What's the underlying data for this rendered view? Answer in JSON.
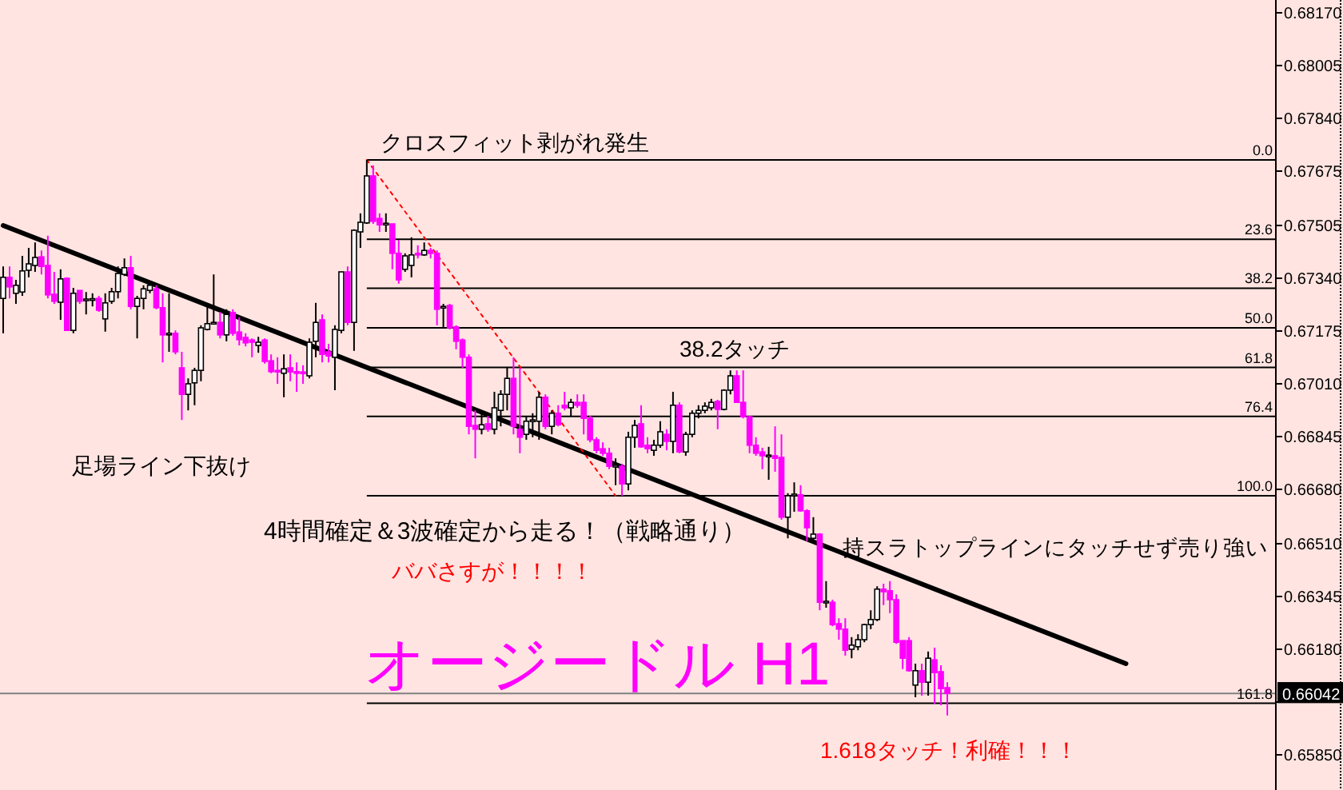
{
  "chart_data": {
    "type": "candlestick",
    "title": "オージードル H1",
    "annotations": [
      "クロスフィット剥がれ発生",
      "38.2タッチ",
      "足場ライン下抜け",
      "4時間確定＆3波確定から走る！（戦略通り）",
      "ババさすが！！！！",
      "持スラトップラインにタッチせず売り強い",
      "1.618タッチ！利確！！！",
      {
        "text": "0.0",
        "y": 0.6771
      },
      {
        "text": "23.6",
        "y": 0.67462
      },
      {
        "text": "38.2",
        "y": 0.67309
      },
      {
        "text": "50.0",
        "y": 0.67185
      },
      {
        "text": "61.8",
        "y": 0.67061
      },
      {
        "text": "76.4",
        "y": 0.66908
      },
      {
        "text": "100.0",
        "y": 0.6666
      },
      {
        "text": "161.8",
        "y": 0.66011
      }
    ],
    "colors": [
      "#ffffff",
      "#ff00ff",
      "#ffffff",
      "#ffffff",
      "#ffffff",
      "#ffffff",
      "#ff00ff",
      "#ff00ff",
      "#ff00ff",
      "#ffffff",
      "#ff00ff",
      "#ffffff",
      "#ff00ff",
      "#ffffff",
      "#ffffff",
      "#ff00ff",
      "#ffffff",
      "#ffffff",
      "#ffffff",
      "#ffffff",
      "#ff00ff",
      "#ffffff",
      "#ffffff",
      "#ffffff",
      "#ff00ff",
      "#ff00ff",
      "#ffffff",
      "#ff00ff",
      "#ff00ff",
      "#ffffff",
      "#ffffff",
      "#ffffff",
      "#ffffff",
      "#ffffff",
      "#ff00ff",
      "#ffffff",
      "#ff00ff",
      "#ff00ff",
      "#ff00ff",
      "#ff00ff",
      "#ffffff",
      "#ff00ff",
      "#ff00ff",
      "#ff00ff",
      "#ffffff",
      "#ff00ff",
      "#ff00ff",
      "#ff00ff",
      "#ffffff",
      "#ffffff",
      "#ff00ff",
      "#ff00ff",
      "#ffffff",
      "#ffffff",
      "#ff00ff",
      "#ffffff",
      "#ffffff",
      "#ffffff",
      "#ff00ff",
      "#ff00ff",
      "#ffffff",
      "#ff00ff",
      "#ff00ff",
      "#ffffff",
      "#ffffff",
      "#ff00ff",
      "#ffffff",
      "#ff00ff",
      "#ff00ff",
      "#ffffff",
      "#ff00ff",
      "#ff00ff",
      "#ff00ff",
      "#ff00ff",
      "#ff00ff",
      "#ffffff",
      "#ff00ff",
      "#ffffff",
      "#ffffff",
      "#ffffff",
      "#ff00ff",
      "#ff00ff",
      "#ffffff",
      "#ffffff",
      "#ffffff",
      "#ff00ff",
      "#ffffff",
      "#ff00ff",
      "#ff00ff",
      "#ffffff",
      "#ff00ff",
      "#ff00ff",
      "#ff00ff",
      "#ff00ff",
      "#ff00ff",
      "#ff00ff",
      "#ffffff",
      "#ff00ff",
      "#ffffff",
      "#ffffff",
      "#ff00ff",
      "#ff00ff",
      "#ffffff",
      "#ffffff",
      "#ff00ff",
      "#ffffff",
      "#ff00ff",
      "#ffffff",
      "#ffffff",
      "#ffffff",
      "#ffffff",
      "#ffffff",
      "#ff00ff",
      "#ffffff",
      "#ffffff",
      "#ff00ff",
      "#ff00ff",
      "#ff00ff",
      "#ff00ff",
      "#ff00ff",
      "#ffffff",
      "#ff00ff",
      "#ff00ff",
      "#ffffff",
      "#ffffff",
      "#ff00ff",
      "#ff00ff",
      "#ffffff",
      "#ff00ff",
      "#ffffff",
      "#ff00ff",
      "#ff00ff",
      "#ff00ff",
      "#ffffff",
      "#ffffff",
      "#ffffff",
      "#ffffff",
      "#ffffff",
      "#ff00ff",
      "#ff00ff",
      "#ff00ff",
      "#ff00ff",
      "#ff00ff",
      "#ffffff",
      "#ff00ff",
      "#ffffff",
      "#ff00ff",
      "#ff00ff",
      "#ff00ff",
      null,
      null,
      null,
      null,
      null,
      null,
      null,
      null,
      null,
      null,
      null,
      null,
      null,
      null,
      null,
      null,
      null,
      null,
      null,
      null,
      null,
      null,
      null,
      null,
      null,
      null,
      null,
      null,
      null,
      null,
      null,
      null,
      null,
      null,
      null,
      null,
      null,
      null,
      null,
      null,
      null,
      null,
      null,
      null,
      null,
      null,
      null,
      null,
      null,
      null,
      null
    ],
    "categories": [
      null,
      null,
      null,
      null,
      null,
      null,
      null,
      null,
      null,
      null,
      null,
      null,
      null,
      null,
      null,
      null,
      null,
      null,
      null,
      null,
      null,
      null,
      null,
      null,
      null,
      null,
      null,
      null,
      null,
      null,
      null,
      null,
      null,
      null,
      null,
      null,
      null,
      null,
      null,
      null,
      null,
      null,
      null,
      null,
      null,
      null,
      null,
      null,
      null,
      null,
      null,
      null,
      null,
      null,
      null,
      null,
      null,
      null,
      null,
      null,
      null,
      null,
      null,
      null,
      null,
      null,
      null,
      null,
      null,
      null,
      null,
      null,
      null,
      null,
      null,
      null,
      null,
      null,
      null,
      null,
      null,
      null,
      null,
      null,
      null,
      null,
      null,
      null,
      null,
      null,
      null,
      null,
      null,
      null,
      null,
      null,
      null,
      null,
      null,
      null,
      null,
      null,
      null,
      null,
      null,
      null,
      null,
      null,
      null,
      null,
      null,
      null,
      null,
      null,
      null,
      null,
      null,
      null,
      null,
      null,
      null,
      null,
      null,
      null,
      null,
      null,
      null,
      null,
      null,
      null,
      null,
      null,
      null,
      null,
      null,
      null,
      null,
      null,
      null,
      null,
      null,
      null,
      null,
      null,
      null,
      null,
      null,
      null,
      null,
      null,
      null,
      null,
      null,
      null,
      null,
      null,
      null,
      null,
      null,
      null,
      null,
      null,
      null,
      null,
      null,
      null,
      null,
      null,
      null,
      null,
      null,
      null,
      null,
      null,
      null,
      null,
      null,
      null,
      null,
      null,
      null,
      null,
      null,
      null,
      null,
      null,
      null,
      null,
      null,
      null,
      null,
      null,
      null,
      null,
      null,
      null,
      null,
      null,
      null,
      null
    ],
    "ohlc": [
      [
        0.67277,
        0.67377,
        0.67168,
        0.67343
      ],
      [
        0.67343,
        0.67377,
        0.67277,
        0.67313
      ],
      [
        0.67293,
        0.67335,
        0.6726,
        0.67318
      ],
      [
        0.67297,
        0.6741,
        0.67285,
        0.67363
      ],
      [
        0.67365,
        0.67435,
        0.67343,
        0.67385
      ],
      [
        0.6738,
        0.67452,
        0.6736,
        0.67405
      ],
      [
        0.67407,
        0.67427,
        0.67352,
        0.67377
      ],
      [
        0.6738,
        0.67473,
        0.67277,
        0.67288
      ],
      [
        0.6729,
        0.6736,
        0.6726,
        0.67268
      ],
      [
        0.67265,
        0.67368,
        0.6721,
        0.67338
      ],
      [
        0.6734,
        0.67343,
        0.67177,
        0.67177
      ],
      [
        0.67177,
        0.6731,
        0.67168,
        0.67293
      ],
      [
        0.67302,
        0.67302,
        0.6726,
        0.67268
      ],
      [
        0.67272,
        0.67297,
        0.67227,
        0.67275
      ],
      [
        0.67273,
        0.67293,
        0.67252,
        0.67276
      ],
      [
        0.67277,
        0.67285,
        0.67235,
        0.6724
      ],
      [
        0.67213,
        0.67293,
        0.67173,
        0.67263
      ],
      [
        0.67268,
        0.6731,
        0.6726,
        0.67298
      ],
      [
        0.67298,
        0.67377,
        0.67277,
        0.67355
      ],
      [
        0.67352,
        0.67402,
        0.67347,
        0.67373
      ],
      [
        0.67373,
        0.6741,
        0.67243,
        0.67252
      ],
      [
        0.67252,
        0.67285,
        0.67152,
        0.67277
      ],
      [
        0.67277,
        0.67318,
        0.67243,
        0.67307
      ],
      [
        0.67302,
        0.6733,
        0.67293,
        0.67318
      ],
      [
        0.67307,
        0.67318,
        0.67243,
        0.67248
      ],
      [
        0.67248,
        0.67293,
        0.67077,
        0.67163
      ],
      [
        0.67165,
        0.67293,
        0.6711,
        0.67168
      ],
      [
        0.67168,
        0.67177,
        0.67102,
        0.6711
      ],
      [
        0.6706,
        0.6711,
        0.66897,
        0.66977
      ],
      [
        0.66977,
        0.67027,
        0.66927,
        0.6701
      ],
      [
        0.67013,
        0.6706,
        0.66943,
        0.67052
      ],
      [
        0.67052,
        0.67193,
        0.67018,
        0.67185
      ],
      [
        0.6718,
        0.6726,
        0.67177,
        0.67198
      ],
      [
        0.67198,
        0.67352,
        0.67195,
        0.67202
      ],
      [
        0.67202,
        0.67235,
        0.67152,
        0.67163
      ],
      [
        0.67163,
        0.67243,
        0.67143,
        0.67227
      ],
      [
        0.67233,
        0.67243,
        0.6716,
        0.67168
      ],
      [
        0.67172,
        0.67218,
        0.6713,
        0.67148
      ],
      [
        0.67155,
        0.67168,
        0.67127,
        0.67138
      ],
      [
        0.67147,
        0.67152,
        0.67093,
        0.6714
      ],
      [
        0.6713,
        0.67157,
        0.67107,
        0.6714
      ],
      [
        0.67147,
        0.67152,
        0.67073,
        0.6708
      ],
      [
        0.67082,
        0.67102,
        0.67043,
        0.67048
      ],
      [
        0.67052,
        0.67093,
        0.6701,
        0.67047
      ],
      [
        0.67043,
        0.67102,
        0.66968,
        0.67057
      ],
      [
        0.6706,
        0.67102,
        0.67018,
        0.67047
      ],
      [
        0.67048,
        0.67077,
        0.66985,
        0.67043
      ],
      [
        0.67047,
        0.67068,
        0.6701,
        0.67043
      ],
      [
        0.67035,
        0.67152,
        0.67027,
        0.6714
      ],
      [
        0.67143,
        0.67263,
        0.67093,
        0.67202
      ],
      [
        0.6721,
        0.67227,
        0.67077,
        0.67102
      ],
      [
        0.6711,
        0.67135,
        0.67077,
        0.67097
      ],
      [
        0.67093,
        0.67193,
        0.6699,
        0.6718
      ],
      [
        0.67177,
        0.6736,
        0.67168,
        0.6736
      ],
      [
        0.6736,
        0.67377,
        0.67193,
        0.67202
      ],
      [
        0.67202,
        0.67493,
        0.67113,
        0.6749
      ],
      [
        0.67485,
        0.67543,
        0.67435,
        0.67515
      ],
      [
        0.67513,
        0.6771,
        0.6751,
        0.6766
      ],
      [
        0.6766,
        0.67693,
        0.6751,
        0.67518
      ],
      [
        0.67527,
        0.67543,
        0.67485,
        0.67507
      ],
      [
        0.67508,
        0.67543,
        0.67485,
        0.67512
      ],
      [
        0.6751,
        0.6751,
        0.67368,
        0.67418
      ],
      [
        0.67418,
        0.6746,
        0.67323,
        0.67335
      ],
      [
        0.67368,
        0.67418,
        0.6736,
        0.6741
      ],
      [
        0.6738,
        0.67468,
        0.67343,
        0.67413
      ],
      [
        0.67418,
        0.67443,
        0.67402,
        0.67415
      ],
      [
        0.67413,
        0.67452,
        0.6741,
        0.67427
      ],
      [
        0.67427,
        0.67435,
        0.67402,
        0.67418
      ],
      [
        0.67418,
        0.67427,
        0.67193,
        0.67243
      ],
      [
        0.67248,
        0.6726,
        0.67185,
        0.67252
      ],
      [
        0.67255,
        0.6726,
        0.6718,
        0.67185
      ],
      [
        0.67188,
        0.67193,
        0.67118,
        0.67143
      ],
      [
        0.67147,
        0.67152,
        0.6706,
        0.67093
      ],
      [
        0.67093,
        0.67102,
        0.66852,
        0.66877
      ],
      [
        0.6688,
        0.66927,
        0.66777,
        0.66868
      ],
      [
        0.66868,
        0.66927,
        0.66852,
        0.66882
      ],
      [
        0.66885,
        0.6691,
        0.6686,
        0.66868
      ],
      [
        0.66868,
        0.66985,
        0.66852,
        0.66935
      ],
      [
        0.66927,
        0.6699,
        0.66877,
        0.66977
      ],
      [
        0.66977,
        0.6706,
        0.66927,
        0.67027
      ],
      [
        0.67027,
        0.67093,
        0.66852,
        0.66877
      ],
      [
        0.66868,
        0.6706,
        0.66793,
        0.66843
      ],
      [
        0.66852,
        0.6691,
        0.66835,
        0.66893
      ],
      [
        0.66893,
        0.66918,
        0.66843,
        0.66897
      ],
      [
        0.66893,
        0.66985,
        0.66835,
        0.66968
      ],
      [
        0.66968,
        0.66977,
        0.66868,
        0.66877
      ],
      [
        0.66877,
        0.66927,
        0.66852,
        0.66918
      ],
      [
        0.66918,
        0.66943,
        0.66877,
        0.66882
      ],
      [
        0.66943,
        0.66985,
        0.66927,
        0.66935
      ],
      [
        0.66935,
        0.66963,
        0.6691,
        0.66952
      ],
      [
        0.66952,
        0.66977,
        0.66935,
        0.66943
      ],
      [
        0.66952,
        0.66977,
        0.66852,
        0.66902
      ],
      [
        0.66902,
        0.6691,
        0.66827,
        0.66835
      ],
      [
        0.66835,
        0.66843,
        0.66793,
        0.66802
      ],
      [
        0.66807,
        0.66827,
        0.66785,
        0.66793
      ],
      [
        0.66793,
        0.6681,
        0.66743,
        0.66752
      ],
      [
        0.6675,
        0.66777,
        0.66693,
        0.66755
      ],
      [
        0.66752,
        0.6676,
        0.6666,
        0.66697
      ],
      [
        0.66697,
        0.6686,
        0.66677,
        0.66843
      ],
      [
        0.66843,
        0.66897,
        0.6681,
        0.6688
      ],
      [
        0.66885,
        0.66943,
        0.6681,
        0.66813
      ],
      [
        0.66818,
        0.66843,
        0.66793,
        0.66807
      ],
      [
        0.66802,
        0.66835,
        0.66785,
        0.66818
      ],
      [
        0.66818,
        0.66893,
        0.6681,
        0.6686
      ],
      [
        0.66852,
        0.66868,
        0.66802,
        0.6683
      ],
      [
        0.6683,
        0.66985,
        0.66793,
        0.66943
      ],
      [
        0.66943,
        0.66952,
        0.66793,
        0.66797
      ],
      [
        0.66797,
        0.6686,
        0.66785,
        0.66852
      ],
      [
        0.66852,
        0.66927,
        0.66843,
        0.66918
      ],
      [
        0.66918,
        0.66943,
        0.66902,
        0.66927
      ],
      [
        0.66927,
        0.66952,
        0.66918,
        0.6694
      ],
      [
        0.66935,
        0.66963,
        0.66927,
        0.66952
      ],
      [
        0.66955,
        0.6696,
        0.66868,
        0.6693
      ],
      [
        0.6693,
        0.66993,
        0.66927,
        0.6699
      ],
      [
        0.6699,
        0.67052,
        0.66977,
        0.67035
      ],
      [
        0.67035,
        0.67052,
        0.66952,
        0.66952
      ],
      [
        0.66952,
        0.67052,
        0.66902,
        0.66907
      ],
      [
        0.66907,
        0.6691,
        0.66793,
        0.66818
      ],
      [
        0.66818,
        0.66843,
        0.66785,
        0.66793
      ],
      [
        0.66797,
        0.6681,
        0.66743,
        0.66785
      ],
      [
        0.66783,
        0.66813,
        0.6671,
        0.66787
      ],
      [
        0.66785,
        0.66877,
        0.66735,
        0.66777
      ],
      [
        0.6678,
        0.66852,
        0.66585,
        0.66593
      ],
      [
        0.66593,
        0.66668,
        0.66527,
        0.6666
      ],
      [
        0.6666,
        0.66702,
        0.6661,
        0.66665
      ],
      [
        0.66663,
        0.66693,
        0.6661,
        0.66613
      ],
      [
        0.66613,
        0.66618,
        0.66518,
        0.6656
      ],
      [
        0.66527,
        0.66593,
        0.66518,
        0.6654
      ],
      [
        0.6654,
        0.66543,
        0.66302,
        0.66327
      ],
      [
        0.66325,
        0.66393,
        0.6631,
        0.6633
      ],
      [
        0.66327,
        0.66335,
        0.66252,
        0.66257
      ],
      [
        0.6626,
        0.66277,
        0.6621,
        0.66243
      ],
      [
        0.66243,
        0.66277,
        0.6616,
        0.66177
      ],
      [
        0.6618,
        0.66218,
        0.66152,
        0.66193
      ],
      [
        0.66188,
        0.66227,
        0.66177,
        0.6621
      ],
      [
        0.6621,
        0.6626,
        0.66202,
        0.66257
      ],
      [
        0.66257,
        0.66302,
        0.66243,
        0.66273
      ],
      [
        0.66273,
        0.66377,
        0.66268,
        0.66368
      ],
      [
        0.66368,
        0.66385,
        0.66318,
        0.6636
      ],
      [
        0.66363,
        0.66393,
        0.66293,
        0.66335
      ],
      [
        0.66335,
        0.66352,
        0.66197,
        0.66202
      ],
      [
        0.66207,
        0.66207,
        0.66118,
        0.66152
      ],
      [
        0.66207,
        0.66218,
        0.6611,
        0.66113
      ],
      [
        0.66068,
        0.66135,
        0.6603,
        0.66113
      ],
      [
        0.66113,
        0.66135,
        0.66035,
        0.66077
      ],
      [
        0.66077,
        0.66173,
        0.66035,
        0.66152
      ],
      [
        0.66147,
        0.66185,
        0.6601,
        0.66107
      ],
      [
        0.6611,
        0.6613,
        0.66005,
        0.66057
      ],
      [
        0.6606,
        0.66077,
        0.65973,
        0.66042
      ],
      null,
      null,
      null,
      null,
      null,
      null,
      null,
      null,
      null,
      null,
      null,
      null,
      null,
      null,
      null,
      null,
      null,
      null,
      null,
      null,
      null,
      null,
      null,
      null,
      null,
      null,
      null,
      null,
      null,
      null,
      null,
      null,
      null,
      null,
      null,
      null,
      null,
      null,
      null,
      null,
      null,
      null,
      null,
      null,
      null,
      null,
      null,
      null,
      null,
      null,
      null
    ],
    "series": [
      {
        "type": "line",
        "color": "#000000",
        "values": [
          0.67505,
          null,
          null,
          null,
          null,
          null,
          null,
          null,
          null,
          null,
          null,
          null,
          null,
          null,
          null,
          null,
          null,
          null,
          null,
          null,
          null,
          null,
          null,
          null,
          null,
          null,
          null,
          null,
          null,
          null,
          null,
          null,
          null,
          null,
          null,
          null,
          null,
          null,
          null,
          null,
          null,
          null,
          null,
          null,
          null,
          null,
          null,
          null,
          null,
          null,
          null,
          null,
          null,
          null,
          null,
          null,
          null,
          null,
          null,
          null,
          null,
          null,
          null,
          null,
          null,
          null,
          null,
          null,
          null,
          null,
          null,
          null,
          null,
          null,
          null,
          null,
          null,
          null,
          null,
          null,
          null,
          null,
          null,
          null,
          null,
          null,
          null,
          null,
          null,
          null,
          null,
          null,
          null,
          null,
          null,
          null,
          null,
          null,
          null,
          null,
          null,
          null,
          null,
          null,
          null,
          null,
          null,
          null,
          null,
          null,
          null,
          null,
          null,
          null,
          null,
          null,
          null,
          null,
          null,
          null,
          null,
          null,
          null,
          null,
          null,
          null,
          null,
          null,
          null,
          null,
          null,
          null,
          null,
          null,
          null,
          null,
          null,
          null,
          null,
          null,
          null,
          null,
          null,
          null,
          null,
          null,
          null,
          null,
          null,
          null,
          null,
          null,
          null,
          null,
          null,
          null,
          null,
          null,
          null,
          null,
          null,
          null,
          null,
          null,
          null,
          null,
          null,
          null,
          null,
          null,
          null,
          null,
          null,
          null,
          null,
          null,
          0.66135,
          null,
          null,
          null,
          null,
          null,
          null,
          null,
          null,
          null,
          null,
          null,
          null,
          null,
          null,
          null,
          null,
          null,
          null,
          null,
          null,
          null,
          null,
          null
        ]
      },
      {
        "type": "line",
        "color": "#ff0000",
        "line_style": "dotted",
        "values": [
          null,
          null,
          null,
          null,
          null,
          null,
          null,
          null,
          null,
          null,
          null,
          null,
          null,
          null,
          null,
          null,
          null,
          null,
          null,
          null,
          null,
          null,
          null,
          null,
          null,
          null,
          null,
          null,
          null,
          null,
          null,
          null,
          null,
          null,
          null,
          null,
          null,
          null,
          null,
          null,
          null,
          null,
          null,
          null,
          null,
          null,
          null,
          null,
          null,
          null,
          null,
          null,
          null,
          null,
          null,
          null,
          null,
          0.6771,
          null,
          null,
          null,
          null,
          null,
          null,
          null,
          null,
          null,
          null,
          null,
          null,
          null,
          null,
          null,
          null,
          null,
          null,
          null,
          null,
          null,
          null,
          null,
          null,
          null,
          null,
          null,
          null,
          null,
          null,
          null,
          null,
          null,
          null,
          null,
          null,
          null,
          null,
          0.6666,
          null,
          null,
          null,
          null,
          null,
          null,
          null,
          null,
          null,
          null,
          null,
          null,
          null,
          null,
          null,
          null,
          null,
          null,
          null,
          null,
          null,
          null,
          null,
          null,
          null,
          null,
          null,
          null,
          null,
          null,
          null,
          null,
          null,
          null,
          null,
          null,
          null,
          null,
          null,
          null,
          null,
          null,
          null,
          null,
          null,
          null,
          null,
          null,
          null,
          null,
          null,
          null,
          null,
          null,
          null,
          null,
          null,
          null,
          null,
          null,
          null,
          null,
          null,
          null,
          null,
          null,
          null,
          null,
          null,
          null,
          null,
          null,
          null,
          null,
          null,
          null,
          null,
          null,
          null,
          null,
          null,
          null,
          null,
          null,
          null,
          null,
          null,
          null,
          null,
          null,
          null,
          null,
          null,
          null,
          null,
          null,
          null,
          null,
          null,
          null,
          null,
          null,
          null
        ]
      }
    ],
    "ref_lines": [
      {
        "axis": "y",
        "value": 0.6771
      },
      {
        "axis": "y",
        "value": 0.67462
      },
      {
        "axis": "y",
        "value": 0.67309
      },
      {
        "axis": "y",
        "value": 0.67185
      },
      {
        "axis": "y",
        "value": 0.67061
      },
      {
        "axis": "y",
        "value": 0.66908
      },
      {
        "axis": "y",
        "value": 0.6666
      },
      {
        "axis": "y",
        "value": 0.66011
      },
      {
        "axis": "y",
        "value": 0.66042,
        "label": "0.66042",
        "color": "#808080"
      }
    ],
    "ylim": [
      0.6574,
      0.6821
    ],
    "yticks": [
      {
        "value": 0.6817,
        "label": "0.68170"
      },
      {
        "value": 0.68005,
        "label": "0.68005"
      },
      {
        "value": 0.6784,
        "label": "0.67840"
      },
      {
        "value": 0.67675,
        "label": "0.67675"
      },
      {
        "value": 0.67505,
        "label": "0.67505"
      },
      {
        "value": 0.6734,
        "label": "0.67340"
      },
      {
        "value": 0.67175,
        "label": "0.67175"
      },
      {
        "value": 0.6701,
        "label": "0.67010"
      },
      {
        "value": 0.66845,
        "label": "0.66845"
      },
      {
        "value": 0.6668,
        "label": "0.66680"
      },
      {
        "value": 0.6651,
        "label": "0.66510"
      },
      {
        "value": 0.66345,
        "label": "0.66345"
      },
      {
        "value": 0.6618,
        "label": "0.66180"
      },
      {
        "value": 0.66015,
        "label": null
      },
      {
        "value": 0.6585,
        "label": "0.65850"
      }
    ],
    "tick_labels": "y"
  }
}
